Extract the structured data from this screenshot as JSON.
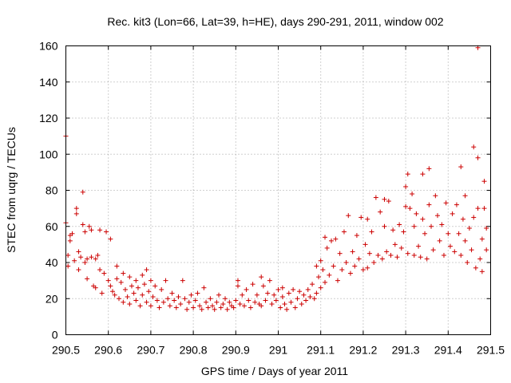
{
  "chart_data": {
    "type": "scatter",
    "title": "Rec. kit3 (Lon=66, Lat=39, h=HE), days 290-291, 2011, window 002",
    "xlabel": "GPS time / Days of year 2011",
    "ylabel": "STEC from uqrg / TECUs",
    "xlim": [
      290.5,
      291.5
    ],
    "ylim": [
      0,
      160
    ],
    "xticks": [
      290.5,
      290.6,
      290.7,
      290.8,
      290.9,
      291,
      291.1,
      291.2,
      291.3,
      291.4,
      291.5
    ],
    "xtick_labels": [
      "290.5",
      "290.6",
      "290.7",
      "290.8",
      "290.9",
      "291",
      "291.1",
      "291.2",
      "291.3",
      "291.4",
      "291.5"
    ],
    "yticks": [
      0,
      20,
      40,
      60,
      80,
      100,
      120,
      140,
      160
    ],
    "ytick_labels": [
      "0",
      "20",
      "40",
      "60",
      "80",
      "100",
      "120",
      "140",
      "160"
    ],
    "grid": true,
    "marker": "+",
    "color": "#cc0000",
    "series": [
      {
        "name": "STEC",
        "points": [
          [
            290.5,
            110
          ],
          [
            290.5,
            62
          ],
          [
            290.505,
            44
          ],
          [
            290.505,
            38
          ],
          [
            290.51,
            55
          ],
          [
            290.51,
            52
          ],
          [
            290.515,
            56
          ],
          [
            290.52,
            41
          ],
          [
            290.525,
            70
          ],
          [
            290.525,
            67
          ],
          [
            290.53,
            46
          ],
          [
            290.53,
            36
          ],
          [
            290.535,
            43
          ],
          [
            290.54,
            79
          ],
          [
            290.54,
            61
          ],
          [
            290.545,
            57
          ],
          [
            290.545,
            40
          ],
          [
            290.55,
            42
          ],
          [
            290.55,
            31
          ],
          [
            290.555,
            60
          ],
          [
            290.56,
            58
          ],
          [
            290.56,
            43
          ],
          [
            290.565,
            27
          ],
          [
            290.57,
            42
          ],
          [
            290.57,
            26
          ],
          [
            290.575,
            44
          ],
          [
            290.58,
            58
          ],
          [
            290.58,
            36
          ],
          [
            290.585,
            23
          ],
          [
            290.59,
            34
          ],
          [
            290.595,
            57
          ],
          [
            290.6,
            30
          ],
          [
            290.605,
            53
          ],
          [
            290.605,
            27
          ],
          [
            290.61,
            24
          ],
          [
            290.615,
            22
          ],
          [
            290.62,
            38
          ],
          [
            290.62,
            31
          ],
          [
            290.625,
            20
          ],
          [
            290.63,
            29
          ],
          [
            290.635,
            34
          ],
          [
            290.635,
            18
          ],
          [
            290.64,
            25
          ],
          [
            290.645,
            21
          ],
          [
            290.65,
            32
          ],
          [
            290.65,
            17
          ],
          [
            290.655,
            27
          ],
          [
            290.66,
            23
          ],
          [
            290.665,
            30
          ],
          [
            290.665,
            19
          ],
          [
            290.67,
            26
          ],
          [
            290.675,
            16
          ],
          [
            290.68,
            33
          ],
          [
            290.68,
            22
          ],
          [
            290.685,
            28
          ],
          [
            290.69,
            36
          ],
          [
            290.69,
            18
          ],
          [
            290.695,
            24
          ],
          [
            290.7,
            30
          ],
          [
            290.7,
            16
          ],
          [
            290.705,
            21
          ],
          [
            290.71,
            27
          ],
          [
            290.715,
            19
          ],
          [
            290.72,
            15
          ],
          [
            290.725,
            25
          ],
          [
            290.73,
            18
          ],
          [
            290.735,
            30
          ],
          [
            290.74,
            20
          ],
          [
            290.745,
            16
          ],
          [
            290.75,
            23
          ],
          [
            290.755,
            19
          ],
          [
            290.76,
            15
          ],
          [
            290.765,
            21
          ],
          [
            290.77,
            17
          ],
          [
            290.775,
            30
          ],
          [
            290.78,
            20
          ],
          [
            290.785,
            14
          ],
          [
            290.79,
            18
          ],
          [
            290.795,
            22
          ],
          [
            290.8,
            15
          ],
          [
            290.805,
            19
          ],
          [
            290.81,
            23
          ],
          [
            290.815,
            16
          ],
          [
            290.82,
            14
          ],
          [
            290.825,
            26
          ],
          [
            290.83,
            18
          ],
          [
            290.835,
            15
          ],
          [
            290.84,
            20
          ],
          [
            290.845,
            16
          ],
          [
            290.85,
            14
          ],
          [
            290.855,
            18
          ],
          [
            290.86,
            22
          ],
          [
            290.865,
            15
          ],
          [
            290.87,
            17
          ],
          [
            290.875,
            20
          ],
          [
            290.88,
            14
          ],
          [
            290.885,
            18
          ],
          [
            290.89,
            16
          ],
          [
            290.895,
            15
          ],
          [
            290.9,
            19
          ],
          [
            290.905,
            30
          ],
          [
            290.905,
            27
          ],
          [
            290.91,
            17
          ],
          [
            290.915,
            22
          ],
          [
            290.92,
            16
          ],
          [
            290.925,
            25
          ],
          [
            290.93,
            19
          ],
          [
            290.935,
            15
          ],
          [
            290.94,
            28
          ],
          [
            290.945,
            18
          ],
          [
            290.95,
            22
          ],
          [
            290.955,
            17
          ],
          [
            290.96,
            32
          ],
          [
            290.96,
            16
          ],
          [
            290.965,
            27
          ],
          [
            290.97,
            19
          ],
          [
            290.975,
            23
          ],
          [
            290.98,
            30
          ],
          [
            290.985,
            17
          ],
          [
            290.99,
            22
          ],
          [
            290.995,
            19
          ],
          [
            291.0,
            25
          ],
          [
            291.005,
            15
          ],
          [
            291.01,
            26
          ],
          [
            291.01,
            21
          ],
          [
            291.015,
            17
          ],
          [
            291.02,
            14
          ],
          [
            291.025,
            23
          ],
          [
            291.03,
            18
          ],
          [
            291.035,
            25
          ],
          [
            291.04,
            15
          ],
          [
            291.045,
            20
          ],
          [
            291.05,
            24
          ],
          [
            291.055,
            17
          ],
          [
            291.06,
            22
          ],
          [
            291.065,
            19
          ],
          [
            291.07,
            25
          ],
          [
            291.075,
            21
          ],
          [
            291.08,
            28
          ],
          [
            291.085,
            20
          ],
          [
            291.09,
            38
          ],
          [
            291.09,
            23
          ],
          [
            291.095,
            32
          ],
          [
            291.1,
            41
          ],
          [
            291.1,
            26
          ],
          [
            291.105,
            36
          ],
          [
            291.11,
            54
          ],
          [
            291.11,
            29
          ],
          [
            291.115,
            48
          ],
          [
            291.12,
            33
          ],
          [
            291.125,
            52
          ],
          [
            291.13,
            38
          ],
          [
            291.135,
            53
          ],
          [
            291.14,
            30
          ],
          [
            291.145,
            45
          ],
          [
            291.15,
            36
          ],
          [
            291.155,
            57
          ],
          [
            291.16,
            40
          ],
          [
            291.165,
            66
          ],
          [
            291.17,
            34
          ],
          [
            291.175,
            46
          ],
          [
            291.18,
            38
          ],
          [
            291.185,
            55
          ],
          [
            291.19,
            42
          ],
          [
            291.195,
            65
          ],
          [
            291.2,
            36
          ],
          [
            291.205,
            50
          ],
          [
            291.21,
            64
          ],
          [
            291.21,
            37
          ],
          [
            291.215,
            45
          ],
          [
            291.22,
            57
          ],
          [
            291.225,
            40
          ],
          [
            291.23,
            76
          ],
          [
            291.235,
            44
          ],
          [
            291.24,
            68
          ],
          [
            291.245,
            42
          ],
          [
            291.25,
            75
          ],
          [
            291.25,
            60
          ],
          [
            291.255,
            46
          ],
          [
            291.26,
            74
          ],
          [
            291.265,
            44
          ],
          [
            291.27,
            58
          ],
          [
            291.275,
            50
          ],
          [
            291.28,
            43
          ],
          [
            291.285,
            61
          ],
          [
            291.29,
            48
          ],
          [
            291.295,
            57
          ],
          [
            291.3,
            82
          ],
          [
            291.3,
            71
          ],
          [
            291.305,
            89
          ],
          [
            291.305,
            45
          ],
          [
            291.31,
            70
          ],
          [
            291.315,
            78
          ],
          [
            291.32,
            60
          ],
          [
            291.32,
            44
          ],
          [
            291.325,
            67
          ],
          [
            291.33,
            49
          ],
          [
            291.335,
            43
          ],
          [
            291.34,
            89
          ],
          [
            291.34,
            64
          ],
          [
            291.345,
            56
          ],
          [
            291.35,
            42
          ],
          [
            291.355,
            92
          ],
          [
            291.355,
            72
          ],
          [
            291.36,
            60
          ],
          [
            291.365,
            47
          ],
          [
            291.37,
            77
          ],
          [
            291.375,
            66
          ],
          [
            291.38,
            52
          ],
          [
            291.385,
            61
          ],
          [
            291.39,
            44
          ],
          [
            291.395,
            73
          ],
          [
            291.4,
            56
          ],
          [
            291.405,
            49
          ],
          [
            291.41,
            67
          ],
          [
            291.415,
            46
          ],
          [
            291.42,
            72
          ],
          [
            291.425,
            56
          ],
          [
            291.43,
            93
          ],
          [
            291.43,
            44
          ],
          [
            291.435,
            64
          ],
          [
            291.44,
            77
          ],
          [
            291.44,
            52
          ],
          [
            291.445,
            40
          ],
          [
            291.45,
            59
          ],
          [
            291.455,
            47
          ],
          [
            291.46,
            104
          ],
          [
            291.46,
            65
          ],
          [
            291.465,
            37
          ],
          [
            291.47,
            98
          ],
          [
            291.47,
            70
          ],
          [
            291.47,
            159
          ],
          [
            291.475,
            42
          ],
          [
            291.48,
            53
          ],
          [
            291.48,
            35
          ],
          [
            291.485,
            85
          ],
          [
            291.485,
            70
          ],
          [
            291.49,
            59
          ],
          [
            291.49,
            47
          ]
        ]
      }
    ]
  }
}
